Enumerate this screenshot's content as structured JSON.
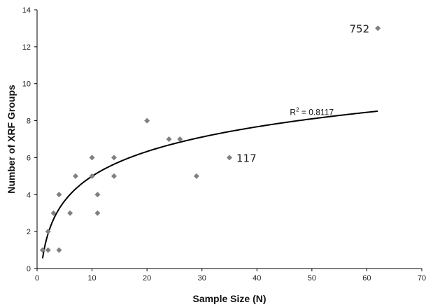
{
  "chart_data": {
    "type": "scatter",
    "title": "",
    "xlabel": "Sample Size (N)",
    "ylabel": "Number of XRF Groups",
    "xlim": [
      0,
      70
    ],
    "ylim": [
      0,
      14
    ],
    "x_ticks": [
      0,
      10,
      20,
      30,
      40,
      50,
      60,
      70
    ],
    "y_ticks": [
      0,
      2,
      4,
      6,
      8,
      10,
      12,
      14
    ],
    "grid": false,
    "marker_color": "#808080",
    "trendline_color": "#000000",
    "points": [
      {
        "x": 1,
        "y": 1
      },
      {
        "x": 2,
        "y": 1
      },
      {
        "x": 2,
        "y": 2
      },
      {
        "x": 3,
        "y": 3
      },
      {
        "x": 4,
        "y": 1
      },
      {
        "x": 4,
        "y": 4
      },
      {
        "x": 6,
        "y": 3
      },
      {
        "x": 7,
        "y": 5
      },
      {
        "x": 10,
        "y": 5
      },
      {
        "x": 10,
        "y": 6
      },
      {
        "x": 11,
        "y": 3
      },
      {
        "x": 11,
        "y": 4
      },
      {
        "x": 14,
        "y": 5
      },
      {
        "x": 14,
        "y": 6
      },
      {
        "x": 20,
        "y": 8
      },
      {
        "x": 24,
        "y": 7
      },
      {
        "x": 26,
        "y": 7
      },
      {
        "x": 29,
        "y": 5
      },
      {
        "x": 35,
        "y": 6
      },
      {
        "x": 62,
        "y": 13
      }
    ],
    "trendline": {
      "type": "logarithmic",
      "a": 1.93,
      "b": 0.55,
      "x_range": [
        1,
        62
      ]
    },
    "annotations": [
      {
        "text": "752",
        "x": 62,
        "y": 13,
        "anchor": "left-of-point"
      },
      {
        "text": "117",
        "x": 35,
        "y": 6,
        "anchor": "right-of-point"
      }
    ],
    "r_squared_label": {
      "prefix": "R",
      "sup": "2",
      "suffix": " = 0.8117",
      "x": 46,
      "y": 8.3
    }
  }
}
